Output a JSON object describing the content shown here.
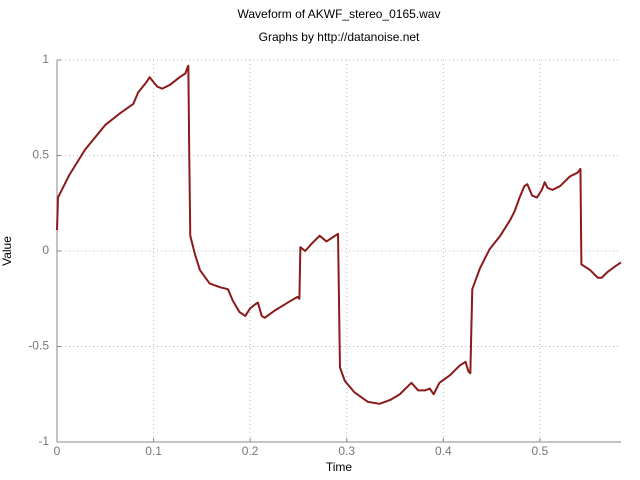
{
  "chart_data": {
    "type": "line",
    "title": "Waveform of AKWF_stereo_0165.wav",
    "subtitle": "Graphs by http://datanoise.net",
    "x_label": "Time",
    "y_label": "Value",
    "color": "#8b1a1a",
    "grid": true,
    "xlim": [
      0,
      0.584
    ],
    "ylim": [
      -1,
      1
    ],
    "xticks": [
      0,
      0.1,
      0.2,
      0.3,
      0.4,
      0.5
    ],
    "yticks": [
      1,
      0.5,
      0,
      -0.5,
      -1
    ],
    "x": [
      0,
      0.001,
      0.013,
      0.029,
      0.05,
      0.065,
      0.079,
      0.084,
      0.092,
      0.096,
      0.099,
      0.104,
      0.109,
      0.117,
      0.127,
      0.133,
      0.135,
      0.136,
      0.137,
      0.138,
      0.143,
      0.148,
      0.158,
      0.169,
      0.177,
      0.182,
      0.189,
      0.195,
      0.2,
      0.205,
      0.208,
      0.212,
      0.215,
      0.226,
      0.239,
      0.249,
      0.251,
      0.252,
      0.257,
      0.264,
      0.272,
      0.279,
      0.285,
      0.291,
      0.293,
      0.298,
      0.308,
      0.322,
      0.334,
      0.345,
      0.355,
      0.367,
      0.374,
      0.381,
      0.386,
      0.39,
      0.396,
      0.407,
      0.417,
      0.423,
      0.426,
      0.428,
      0.43,
      0.438,
      0.448,
      0.459,
      0.469,
      0.474,
      0.479,
      0.484,
      0.487,
      0.492,
      0.497,
      0.502,
      0.505,
      0.508,
      0.513,
      0.521,
      0.531,
      0.539,
      0.542,
      0.543,
      0.552,
      0.56,
      0.564,
      0.57,
      0.578,
      0.584
    ],
    "values": [
      0.11,
      0.28,
      0.4,
      0.53,
      0.66,
      0.72,
      0.77,
      0.83,
      0.88,
      0.91,
      0.89,
      0.86,
      0.85,
      0.87,
      0.91,
      0.93,
      0.96,
      0.97,
      0.48,
      0.08,
      -0.02,
      -0.1,
      -0.17,
      -0.19,
      -0.2,
      -0.26,
      -0.32,
      -0.34,
      -0.3,
      -0.28,
      -0.27,
      -0.34,
      -0.35,
      -0.31,
      -0.27,
      -0.24,
      -0.25,
      0.02,
      0.0,
      0.04,
      0.08,
      0.05,
      0.07,
      0.09,
      -0.61,
      -0.68,
      -0.74,
      -0.79,
      -0.8,
      -0.78,
      -0.75,
      -0.69,
      -0.73,
      -0.73,
      -0.72,
      -0.75,
      -0.69,
      -0.65,
      -0.6,
      -0.58,
      -0.63,
      -0.64,
      -0.2,
      -0.09,
      0.01,
      0.08,
      0.16,
      0.21,
      0.28,
      0.34,
      0.35,
      0.29,
      0.28,
      0.32,
      0.36,
      0.33,
      0.32,
      0.34,
      0.39,
      0.41,
      0.43,
      -0.07,
      -0.1,
      -0.14,
      -0.14,
      -0.11,
      -0.08,
      -0.06
    ]
  }
}
